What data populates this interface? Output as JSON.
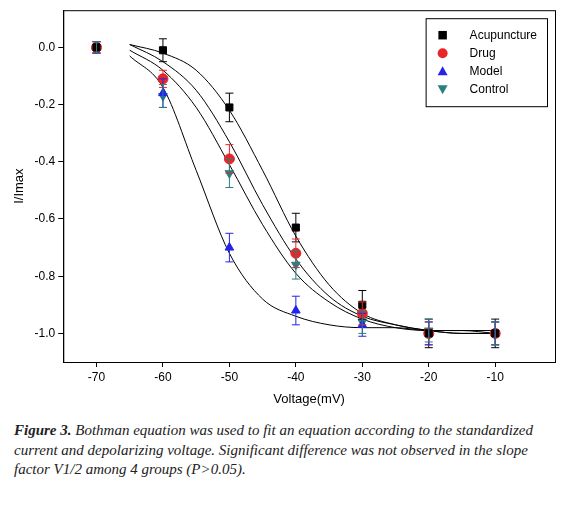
{
  "chart_data": {
    "type": "scatter",
    "x_label": "Voltage(mV)",
    "y_label": "I/Imax",
    "x": [
      -70,
      -60,
      -50,
      -40,
      -30,
      -20,
      -10
    ],
    "xlim": [
      -75,
      -1
    ],
    "xticks": [
      -70,
      -60,
      -50,
      -40,
      -30,
      -20,
      -10
    ],
    "ylim": [
      -1.1,
      0.13
    ],
    "yticks": [
      {
        "value": 0,
        "label": "0.0"
      },
      -0.2,
      -0.4,
      -0.6,
      -0.8,
      {
        "value": -1,
        "label": "-1.0"
      }
    ],
    "grid": false,
    "legend": "top-right",
    "fit_x": [
      -65,
      -60,
      -55,
      -50,
      -45,
      -40,
      -35,
      -30,
      -25,
      -20,
      -15,
      -10
    ],
    "series": [
      {
        "name": "Acupuncture",
        "color": "#000000",
        "marker": "square",
        "values": [
          0,
          -0.01,
          -0.21,
          -0.63,
          -0.9,
          -1.0,
          -1.0
        ],
        "errors": [
          0.02,
          0.04,
          0.05,
          0.05,
          0.05,
          0.05,
          0.05
        ],
        "fit_values": [
          0.01,
          -0.02,
          -0.08,
          -0.22,
          -0.43,
          -0.66,
          -0.83,
          -0.93,
          -0.97,
          -0.99,
          -1.0,
          -1.0
        ]
      },
      {
        "name": "Drug",
        "color": "#e8262a",
        "marker": "circle",
        "values": [
          0,
          -0.11,
          -0.39,
          -0.72,
          -0.93,
          -1.0,
          -1.0
        ],
        "errors": [
          0.02,
          0.03,
          0.05,
          0.05,
          0.04,
          0.04,
          0.04
        ],
        "fit_values": [
          0.01,
          -0.05,
          -0.15,
          -0.33,
          -0.55,
          -0.74,
          -0.87,
          -0.94,
          -0.97,
          -0.99,
          -1.0,
          -1.0
        ]
      },
      {
        "name": "Model",
        "color": "#2424e8",
        "marker": "triangle",
        "values": [
          0,
          -0.16,
          -0.7,
          -0.92,
          -0.97,
          -1.0,
          -1.0
        ],
        "errors": [
          0.02,
          0.05,
          0.05,
          0.05,
          0.04,
          0.04,
          0.04
        ],
        "fit_values": [
          -0.03,
          -0.14,
          -0.43,
          -0.72,
          -0.88,
          -0.94,
          -0.97,
          -0.98,
          -0.98,
          -0.99,
          -0.99,
          -0.99
        ]
      },
      {
        "name": "Control",
        "color": "#2a7f7f",
        "marker": "triangle-down",
        "values": [
          0,
          -0.17,
          -0.44,
          -0.76,
          -0.96,
          -0.99,
          -1.0
        ],
        "errors": [
          0.02,
          0.04,
          0.05,
          0.05,
          0.04,
          0.04,
          0.04
        ],
        "fit_values": [
          -0.01,
          -0.08,
          -0.21,
          -0.41,
          -0.62,
          -0.79,
          -0.89,
          -0.95,
          -0.98,
          -0.99,
          -0.99,
          -1.0
        ]
      }
    ],
    "caption_label": "Figure 3.",
    "caption": "Bothman equation was used to fit an equation according to the standardized current and depolarizing voltage. Significant difference was not observed in the slope factor V1/2 among 4 groups (P>0.05)."
  }
}
